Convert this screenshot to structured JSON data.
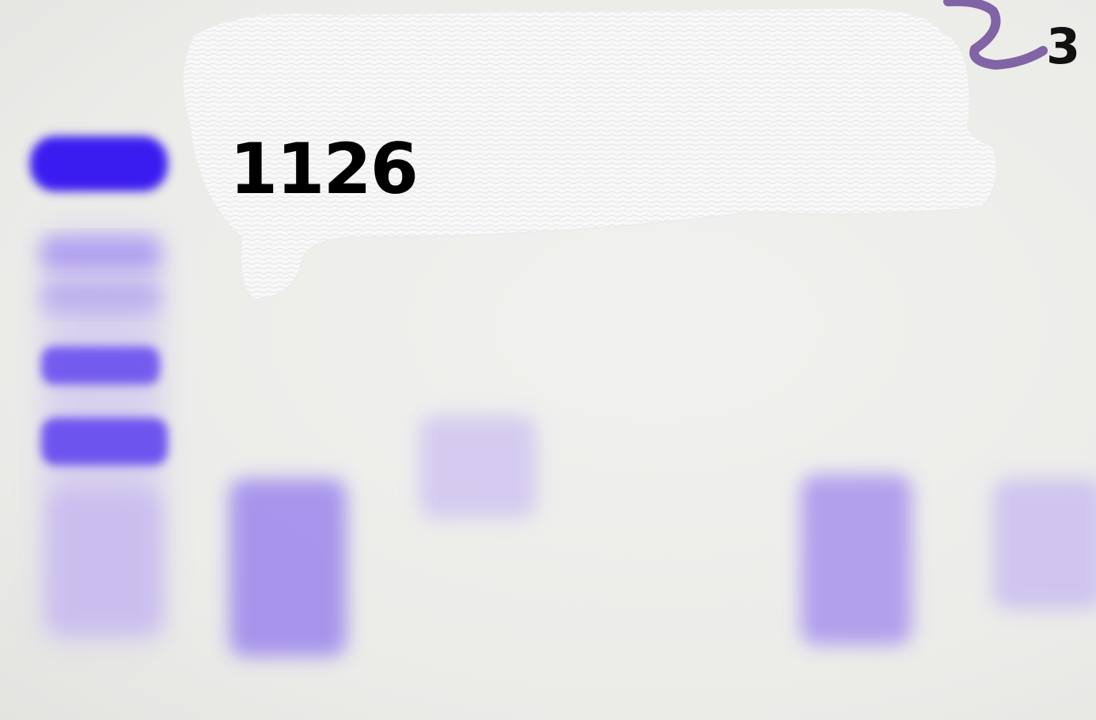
{
  "gel": {
    "sample_label": "1126",
    "lane_mark": "3",
    "colors": {
      "background": "#ecece9",
      "stain_strong": "#3a1ef0",
      "stain_medium": "#6a4ff0",
      "stain_light": "#b9a8ef",
      "ink": "#000000",
      "marker_pen": "#6d4c9a",
      "redaction": "#f7f7f7"
    }
  }
}
